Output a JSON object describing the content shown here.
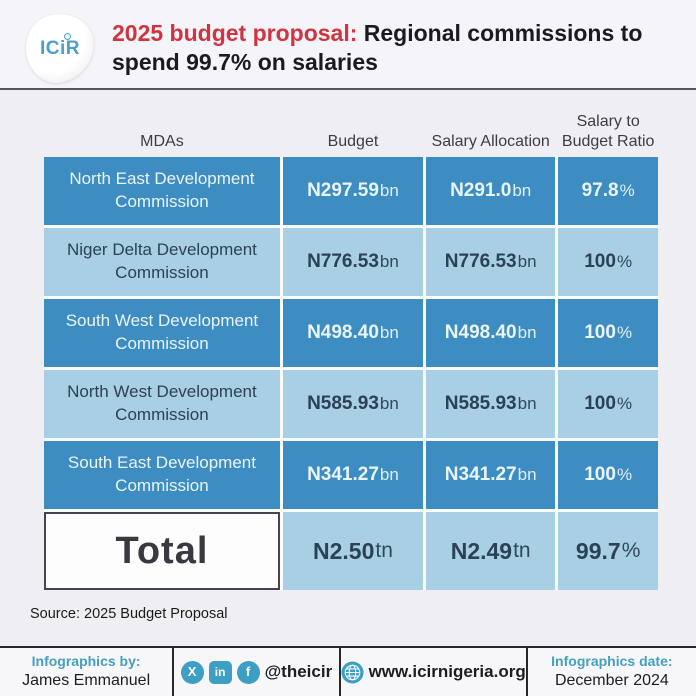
{
  "header": {
    "logo_text": "ICiR",
    "title_red": "2025 budget proposal:",
    "title_rest": " Regional commissions to spend 99.7% on salaries"
  },
  "table": {
    "columns": [
      {
        "label": "MDAs"
      },
      {
        "label": "Budget"
      },
      {
        "label": "Salary Allocation"
      },
      {
        "label": "Salary to Budget Ratio"
      }
    ],
    "rows": [
      {
        "mda": "North East Development Commission",
        "budget": "N297.59",
        "budget_unit": "bn",
        "salary": "N291.0",
        "salary_unit": "bn",
        "ratio": "97.8",
        "ratio_unit": "%",
        "tone": "dark"
      },
      {
        "mda": "Niger Delta Development Commission",
        "budget": "N776.53",
        "budget_unit": "bn",
        "salary": "N776.53",
        "salary_unit": "bn",
        "ratio": "100",
        "ratio_unit": "%",
        "tone": "light"
      },
      {
        "mda": "South West Development Commission",
        "budget": "N498.40",
        "budget_unit": "bn",
        "salary": "N498.40",
        "salary_unit": "bn",
        "ratio": "100",
        "ratio_unit": "%",
        "tone": "dark"
      },
      {
        "mda": "North West Development Commission",
        "budget": "N585.93",
        "budget_unit": "bn",
        "salary": "N585.93",
        "salary_unit": "bn",
        "ratio": "100",
        "ratio_unit": "%",
        "tone": "light"
      },
      {
        "mda": "South East Development Commission",
        "budget": "N341.27",
        "budget_unit": "bn",
        "salary": "N341.27",
        "salary_unit": "bn",
        "ratio": "100",
        "ratio_unit": "%",
        "tone": "dark"
      }
    ],
    "total": {
      "label": "Total",
      "budget": "N2.50",
      "budget_unit": "tn",
      "salary": "N2.49",
      "salary_unit": "tn",
      "ratio": "99.7",
      "ratio_unit": "%"
    }
  },
  "source": "Source: 2025 Budget Proposal",
  "footer": {
    "by_label": "Infographics by:",
    "by_name": "James Emmanuel",
    "x_icon_label": "X",
    "linkedin_icon_label": "in",
    "facebook_icon_label": "f",
    "handle": "@theicir",
    "website": "www.icirnigeria.org",
    "date_label": "Infographics date:",
    "date_value": "December 2024"
  },
  "colors": {
    "row_dark_blue": "#3d8dc2",
    "row_light_blue": "#a9cfe5",
    "title_red": "#d13440",
    "footer_teal": "#45a0c0",
    "icon_teal": "#3d9ec6",
    "text_navy": "#2a4156",
    "background": "#efeef3"
  },
  "chart_data": {
    "type": "table",
    "title": "2025 budget proposal: Regional commissions to spend 99.7% on salaries",
    "columns": [
      "MDAs",
      "Budget",
      "Salary Allocation",
      "Salary to Budget Ratio"
    ],
    "rows": [
      [
        "North East Development Commission",
        "N297.59bn",
        "N291.0bn",
        "97.8%"
      ],
      [
        "Niger Delta Development Commission",
        "N776.53bn",
        "N776.53bn",
        "100%"
      ],
      [
        "South West Development Commission",
        "N498.40bn",
        "N498.40bn",
        "100%"
      ],
      [
        "North West Development Commission",
        "N585.93bn",
        "N585.93bn",
        "100%"
      ],
      [
        "South East Development Commission",
        "N341.27bn",
        "N341.27bn",
        "100%"
      ],
      [
        "Total",
        "N2.50tn",
        "N2.49tn",
        "99.7%"
      ]
    ],
    "source": "Source: 2025 Budget Proposal"
  }
}
